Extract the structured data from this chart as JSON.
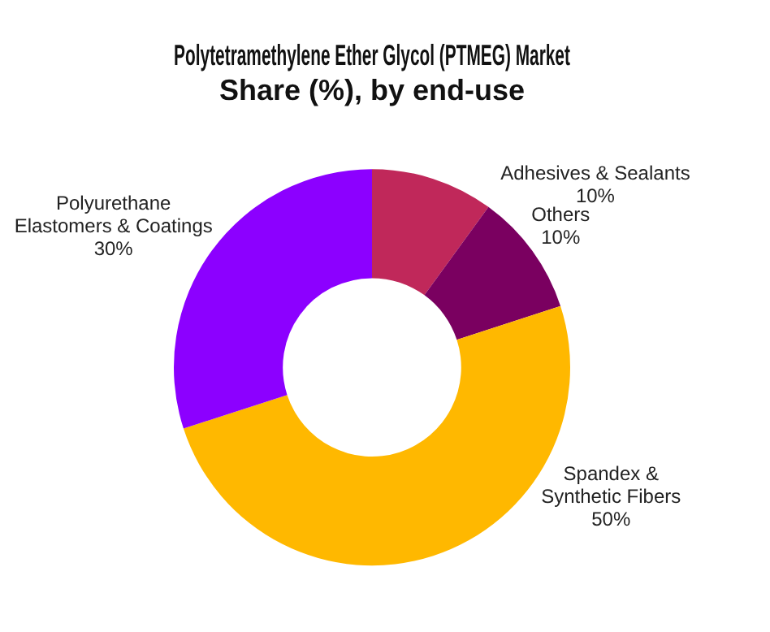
{
  "chart_data": {
    "type": "donut",
    "title": "Polytetramethylene Ether Glycol (PTMEG) Market Share (%), by end-use",
    "categories": [
      "Adhesives & Sealants",
      "Others",
      "Spandex &\nSynthetic Fibers",
      "Polyurethane\nElastomers & Coatings"
    ],
    "values": [
      10,
      10,
      50,
      30
    ],
    "value_labels": [
      "10%",
      "10%",
      "50%",
      "30%"
    ],
    "colors": [
      "#c0285a",
      "#7a0060",
      "#ffb800",
      "#8c00ff"
    ],
    "legend": false
  }
}
